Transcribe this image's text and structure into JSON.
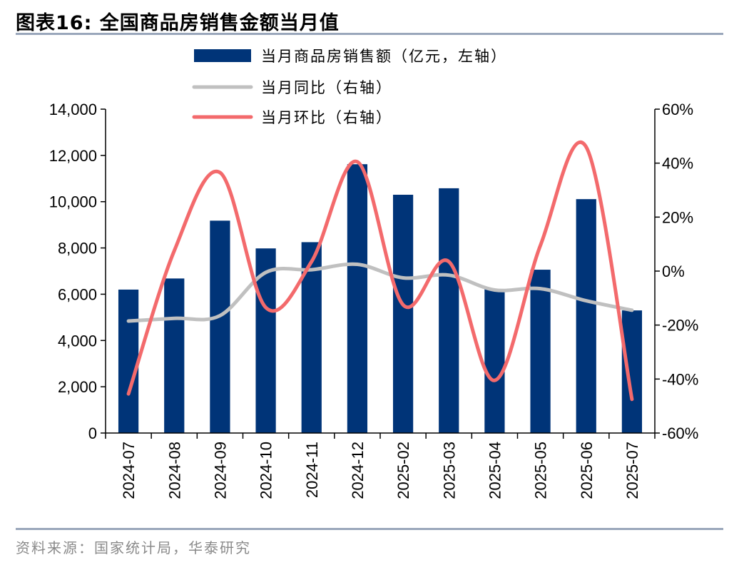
{
  "figure": {
    "title": "图表16:  全国商品房销售金额当月值",
    "source": "资料来源：国家统计局，华泰研究"
  },
  "colors": {
    "bar": "#003478",
    "yoy_line": "#c0c0c0",
    "mom_line": "#f36a6c",
    "rule": "#9aa7bb"
  },
  "chart_data": {
    "type": "bar",
    "categories": [
      "2024-07",
      "2024-08",
      "2024-09",
      "2024-10",
      "2024-11",
      "2024-12",
      "2025-02",
      "2025-03",
      "2025-04",
      "2025-05",
      "2025-06",
      "2025-07"
    ],
    "series": [
      {
        "name": "当月商品房销售额（亿元，左轴）",
        "type": "bar",
        "axis": "left",
        "values": [
          6200,
          6680,
          9180,
          7980,
          8250,
          11620,
          10300,
          10580,
          6230,
          7060,
          10110,
          5300
        ]
      },
      {
        "name": "当月同比（右轴）",
        "type": "line",
        "axis": "right",
        "values": [
          -18.5,
          -17.5,
          -16.5,
          -0.5,
          0.5,
          2.5,
          -2.5,
          -1.5,
          -7.0,
          -6.5,
          -11.0,
          -14.5
        ]
      },
      {
        "name": "当月环比（右轴）",
        "type": "line",
        "axis": "right",
        "values": [
          -45.5,
          7.5,
          36.5,
          -13.5,
          3.5,
          40.5,
          -12.5,
          3.5,
          -40.5,
          9.5,
          46.0,
          -47.5
        ]
      }
    ],
    "yleft": {
      "lim": [
        0,
        14000
      ],
      "ticks": [
        "0",
        "2,000",
        "4,000",
        "6,000",
        "8,000",
        "10,000",
        "12,000",
        "14,000"
      ]
    },
    "yright": {
      "lim": [
        -60,
        60
      ],
      "ticks": [
        "-60%",
        "-40%",
        "-20%",
        "0%",
        "20%",
        "40%",
        "60%"
      ]
    },
    "legend_placement": "top-center",
    "grid": false
  }
}
